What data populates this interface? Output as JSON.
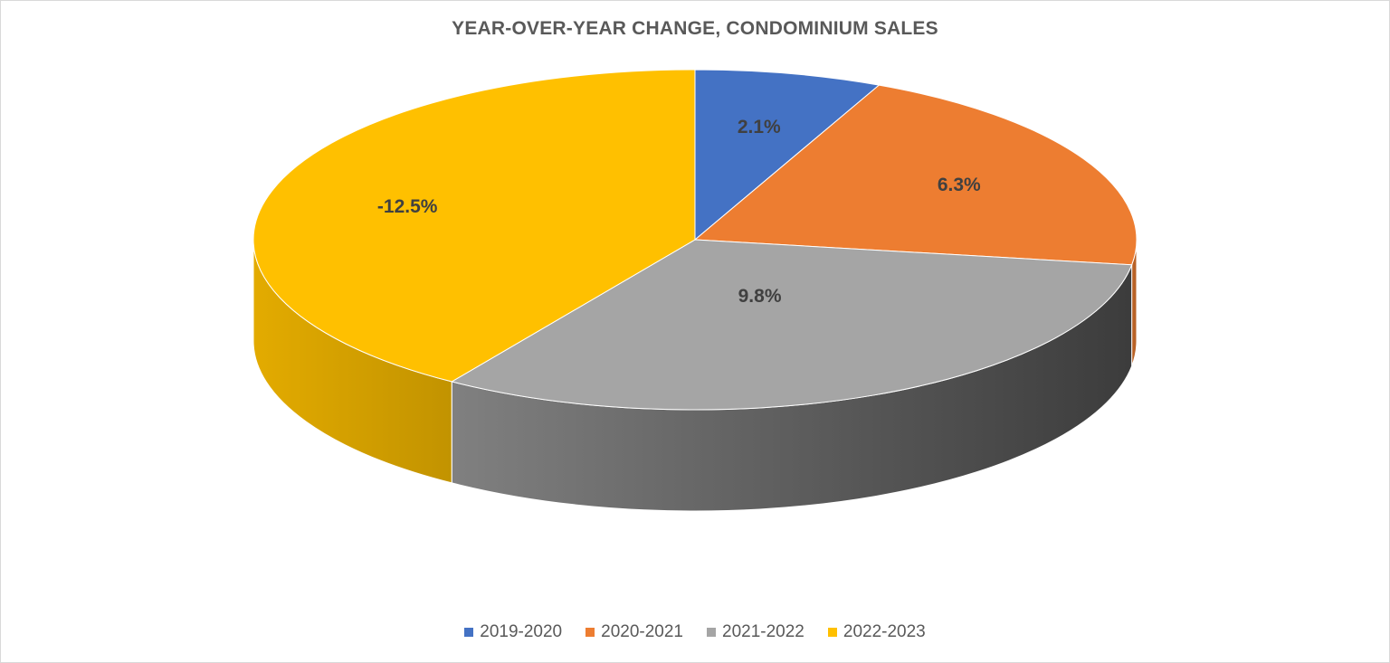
{
  "chart_data": {
    "type": "pie",
    "style": "3d",
    "title": "YEAR-OVER-YEAR CHANGE, CONDOMINIUM SALES",
    "categories": [
      "2019-2020",
      "2020-2021",
      "2021-2022",
      "2022-2023"
    ],
    "values": [
      2.1,
      6.3,
      9.8,
      -12.5
    ],
    "labels": [
      "2.1%",
      "6.3%",
      "9.8%",
      "-12.5%"
    ],
    "colors": [
      "#4472c4",
      "#ed7d31",
      "#a5a5a5",
      "#ffc000"
    ],
    "legend_position": "bottom"
  }
}
